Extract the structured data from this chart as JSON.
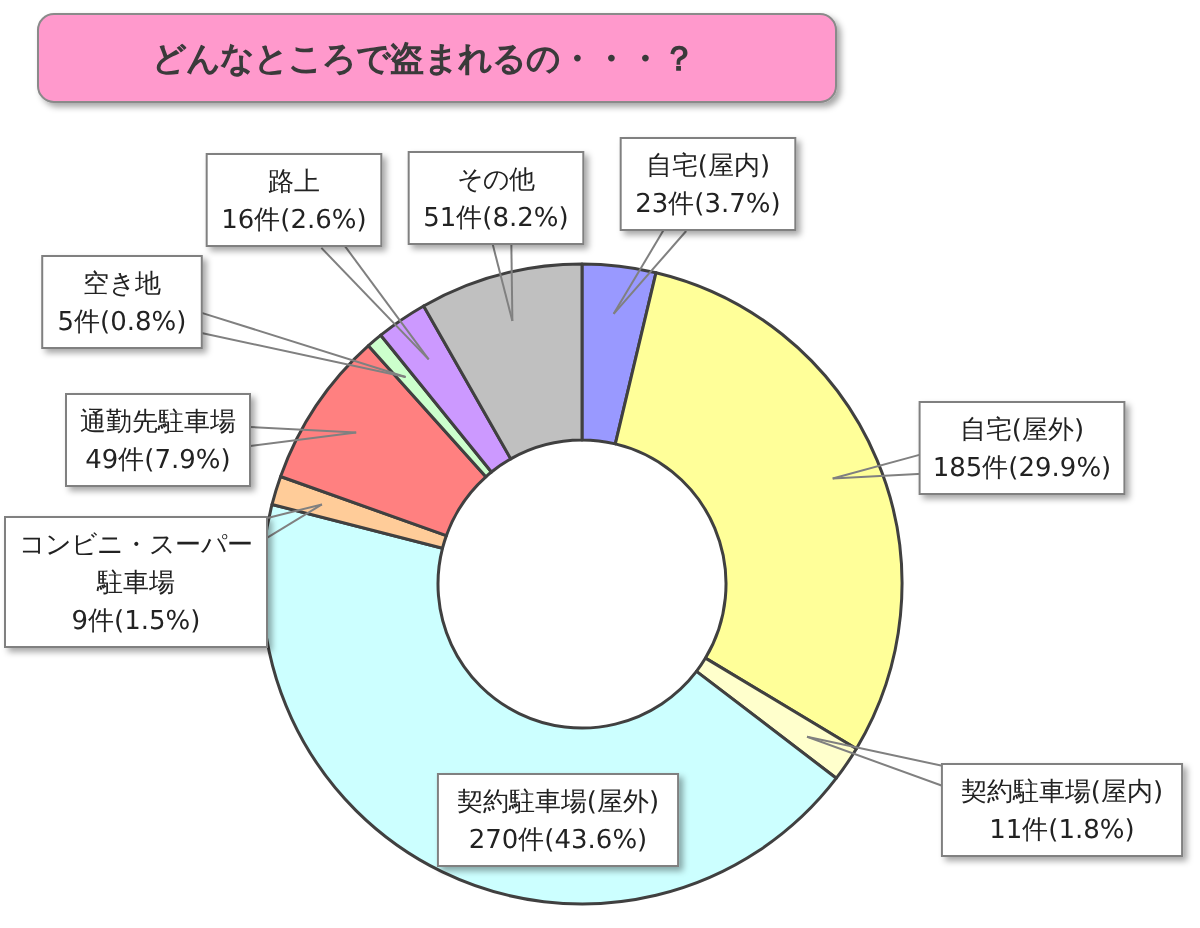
{
  "chart_data": {
    "type": "donut",
    "title": "どんなところで盗まれるの・・・？",
    "categories": [
      "自宅(屋内)",
      "自宅(屋外)",
      "契約駐車場(屋内)",
      "契約駐車場(屋外)",
      "コンビニ・スーパー駐車場",
      "通勤先駐車場",
      "空き地",
      "路上",
      "その他"
    ],
    "values": [
      23,
      185,
      11,
      270,
      9,
      49,
      5,
      16,
      51
    ],
    "colors": [
      "#9999ff",
      "#ffff99",
      "#ffffcc",
      "#ccffff",
      "#ffcc99",
      "#ff8080",
      "#ccffcc",
      "#cc99ff",
      "#c0c0c0"
    ],
    "value_labels": [
      "23件(3.7%)",
      "185件(29.9%)",
      "11件(1.8%)",
      "270件(43.6%)",
      "9件(1.5%)",
      "49件(7.9%)",
      "5件(0.8%)",
      "16件(2.6%)",
      "51件(8.2%)"
    ]
  }
}
